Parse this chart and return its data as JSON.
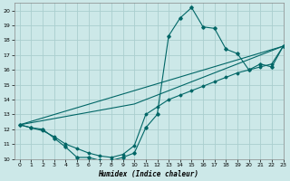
{
  "title": "",
  "xlabel": "Humidex (Indice chaleur)",
  "xlim": [
    -0.5,
    23
  ],
  "ylim": [
    10,
    20.5
  ],
  "xticks": [
    0,
    1,
    2,
    3,
    4,
    5,
    6,
    7,
    8,
    9,
    10,
    11,
    12,
    13,
    14,
    15,
    16,
    17,
    18,
    19,
    20,
    21,
    22,
    23
  ],
  "yticks": [
    10,
    11,
    12,
    13,
    14,
    15,
    16,
    17,
    18,
    19,
    20
  ],
  "bg_color": "#cce8e8",
  "grid_color": "#aacece",
  "line_color": "#006666",
  "curve1_x": [
    0,
    1,
    2,
    3,
    4,
    5,
    6,
    7,
    8,
    9,
    10,
    11,
    12,
    13,
    14,
    15,
    16,
    17,
    18,
    19,
    20,
    21,
    22,
    23
  ],
  "curve1_y": [
    12.3,
    12.1,
    12.0,
    11.4,
    10.8,
    10.1,
    10.1,
    9.9,
    9.9,
    10.1,
    10.4,
    12.1,
    13.0,
    18.3,
    19.5,
    20.2,
    18.9,
    18.8,
    17.4,
    17.1,
    16.0,
    16.4,
    16.2,
    17.6
  ],
  "curve2_x": [
    0,
    1,
    2,
    3,
    4,
    5,
    6,
    7,
    8,
    9,
    10,
    11,
    12,
    13,
    14,
    15,
    16,
    17,
    18,
    19,
    20,
    21,
    22,
    23
  ],
  "curve2_y": [
    12.3,
    12.1,
    11.9,
    11.5,
    11.0,
    10.7,
    10.4,
    10.2,
    10.1,
    10.3,
    10.9,
    13.0,
    13.5,
    14.0,
    14.3,
    14.6,
    14.9,
    15.2,
    15.5,
    15.8,
    16.0,
    16.2,
    16.4,
    17.6
  ],
  "line3_x": [
    0,
    10,
    23
  ],
  "line3_y": [
    12.3,
    13.7,
    17.6
  ],
  "line4_x": [
    0,
    23
  ],
  "line4_y": [
    12.3,
    17.6
  ]
}
